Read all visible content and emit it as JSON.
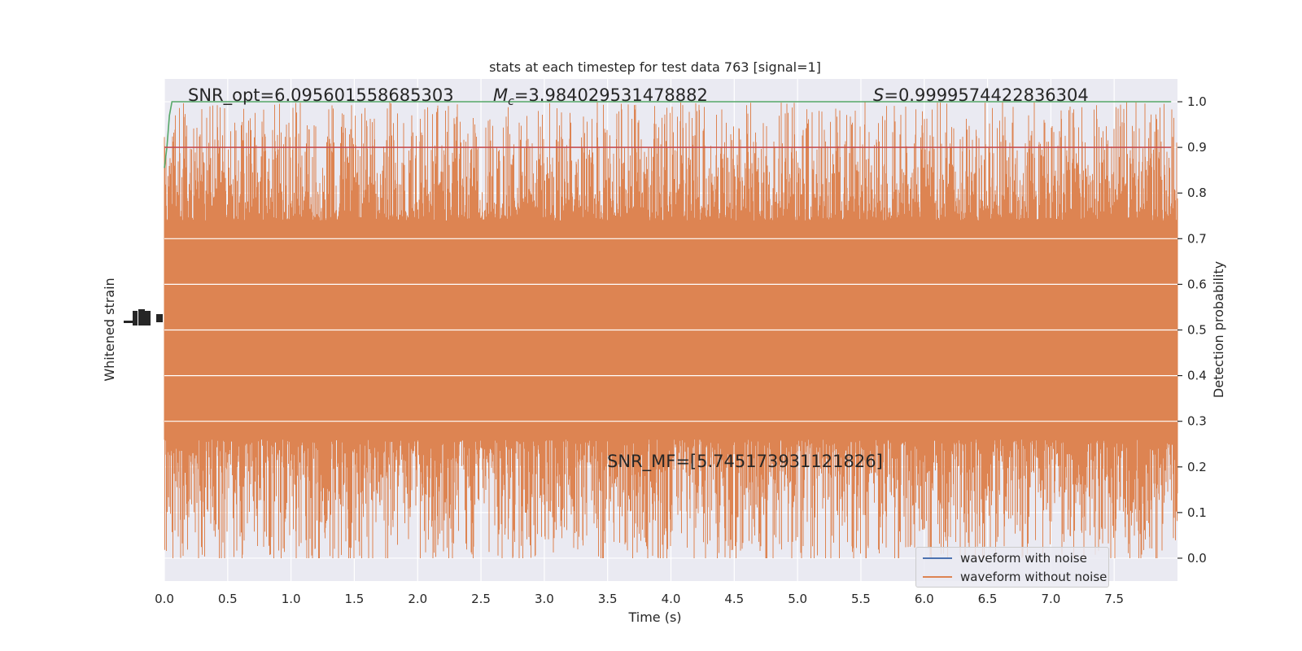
{
  "chart_data": {
    "type": "line",
    "title": "stats at each timestep for test data 763 [signal=1]",
    "xlabel": "Time (s)",
    "ylabel_left": "Whitened strain",
    "ylabel_right": "Detection probability",
    "xlim": [
      0.0,
      8.0
    ],
    "ylim_right": [
      -0.05,
      1.05
    ],
    "x_ticks": [
      "0.0",
      "0.5",
      "1.0",
      "1.5",
      "2.0",
      "2.5",
      "3.0",
      "3.5",
      "4.0",
      "4.5",
      "5.0",
      "5.5",
      "6.0",
      "6.5",
      "7.0",
      "7.5"
    ],
    "y_ticks_right": [
      "0.0",
      "0.1",
      "0.2",
      "0.3",
      "0.4",
      "0.5",
      "0.6",
      "0.7",
      "0.8",
      "0.9",
      "1.0"
    ],
    "grid": true,
    "legend_position": "lower-right",
    "annotations": {
      "snr_opt": "SNR_opt=6.095601558685303",
      "mc_symbol": "M",
      "mc_subscript": "c",
      "mc_value": "=3.984029531478882",
      "s_symbol": "S",
      "s_value": "=0.9999574422836304",
      "snr_mf": "SNR_MF=[5.745173931121826]"
    },
    "series": [
      {
        "name": "waveform with noise",
        "color": "#4c72b0"
      },
      {
        "name": "waveform without noise",
        "color": "#dd8452",
        "band_center": 0.5,
        "band_core": [
          0.3,
          0.7
        ],
        "range": [
          0.0,
          1.0
        ]
      },
      {
        "color": "#55a868",
        "x": [
          0.0,
          0.02,
          0.04,
          0.06,
          7.95
        ],
        "values": [
          0.855,
          0.9,
          0.97,
          1.0,
          1.0
        ]
      },
      {
        "color": "#c44e52",
        "x": [
          0.0,
          7.95
        ],
        "values": [
          0.9,
          0.9
        ]
      }
    ]
  }
}
